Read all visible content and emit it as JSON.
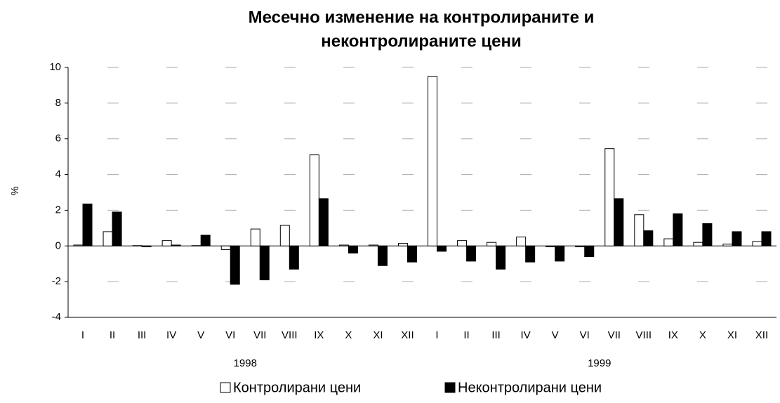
{
  "chart_data": {
    "type": "bar",
    "title": [
      "Месечно изменение на контролираните и",
      "неконтролираните цени"
    ],
    "y_label": "%",
    "categories": [
      "I",
      "II",
      "III",
      "IV",
      "V",
      "VI",
      "VII",
      "VIII",
      "IX",
      "X",
      "XI",
      "XII",
      "I",
      "II",
      "III",
      "IV",
      "V",
      "VI",
      "VII",
      "VIII",
      "IX",
      "X",
      "XI",
      "XII"
    ],
    "groups": [
      "1998",
      "1999"
    ],
    "series": [
      {
        "name": "Контролирани цени",
        "color": "#ffffff",
        "values": [
          0.05,
          0.8,
          0.02,
          0.3,
          0.02,
          -0.2,
          0.95,
          1.15,
          5.1,
          0.05,
          0.05,
          0.15,
          9.5,
          0.3,
          0.2,
          0.5,
          -0.05,
          -0.05,
          5.45,
          1.75,
          0.4,
          0.2,
          0.1,
          0.25
        ]
      },
      {
        "name": "Неконтролирани цени",
        "color": "#000000",
        "values": [
          2.35,
          1.9,
          -0.05,
          0.05,
          0.6,
          -2.15,
          -1.9,
          -1.3,
          2.65,
          -0.4,
          -1.1,
          -0.9,
          -0.3,
          -0.85,
          -1.3,
          -0.9,
          -0.85,
          -0.6,
          2.65,
          0.85,
          1.8,
          1.25,
          0.8,
          0.8
        ]
      }
    ],
    "ylim": [
      -4,
      10
    ],
    "yticks": [
      -4,
      -2,
      0,
      2,
      4,
      6,
      8,
      10
    ],
    "grid": true,
    "legend": "bottom"
  }
}
